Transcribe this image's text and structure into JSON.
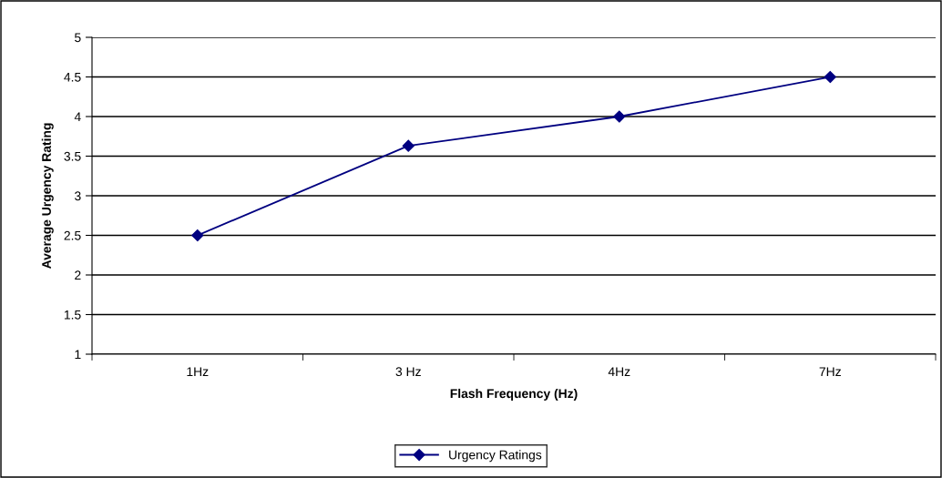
{
  "chart_data": {
    "type": "line",
    "xlabel": "Flash Frequency (Hz)",
    "ylabel": "Average Urgency Rating",
    "categories": [
      "1Hz",
      "3 Hz",
      "4Hz",
      "7Hz"
    ],
    "series": [
      {
        "name": "Urgency Ratings",
        "color": "#000080",
        "values": [
          2.5,
          3.63,
          4.0,
          4.5
        ]
      }
    ],
    "ylim": [
      1,
      5
    ],
    "yticks": [
      1,
      1.5,
      2,
      2.5,
      3,
      3.5,
      4,
      4.5,
      5
    ],
    "grid": "y",
    "legend": "bottom",
    "marker": "diamond",
    "line_style": "solid"
  }
}
